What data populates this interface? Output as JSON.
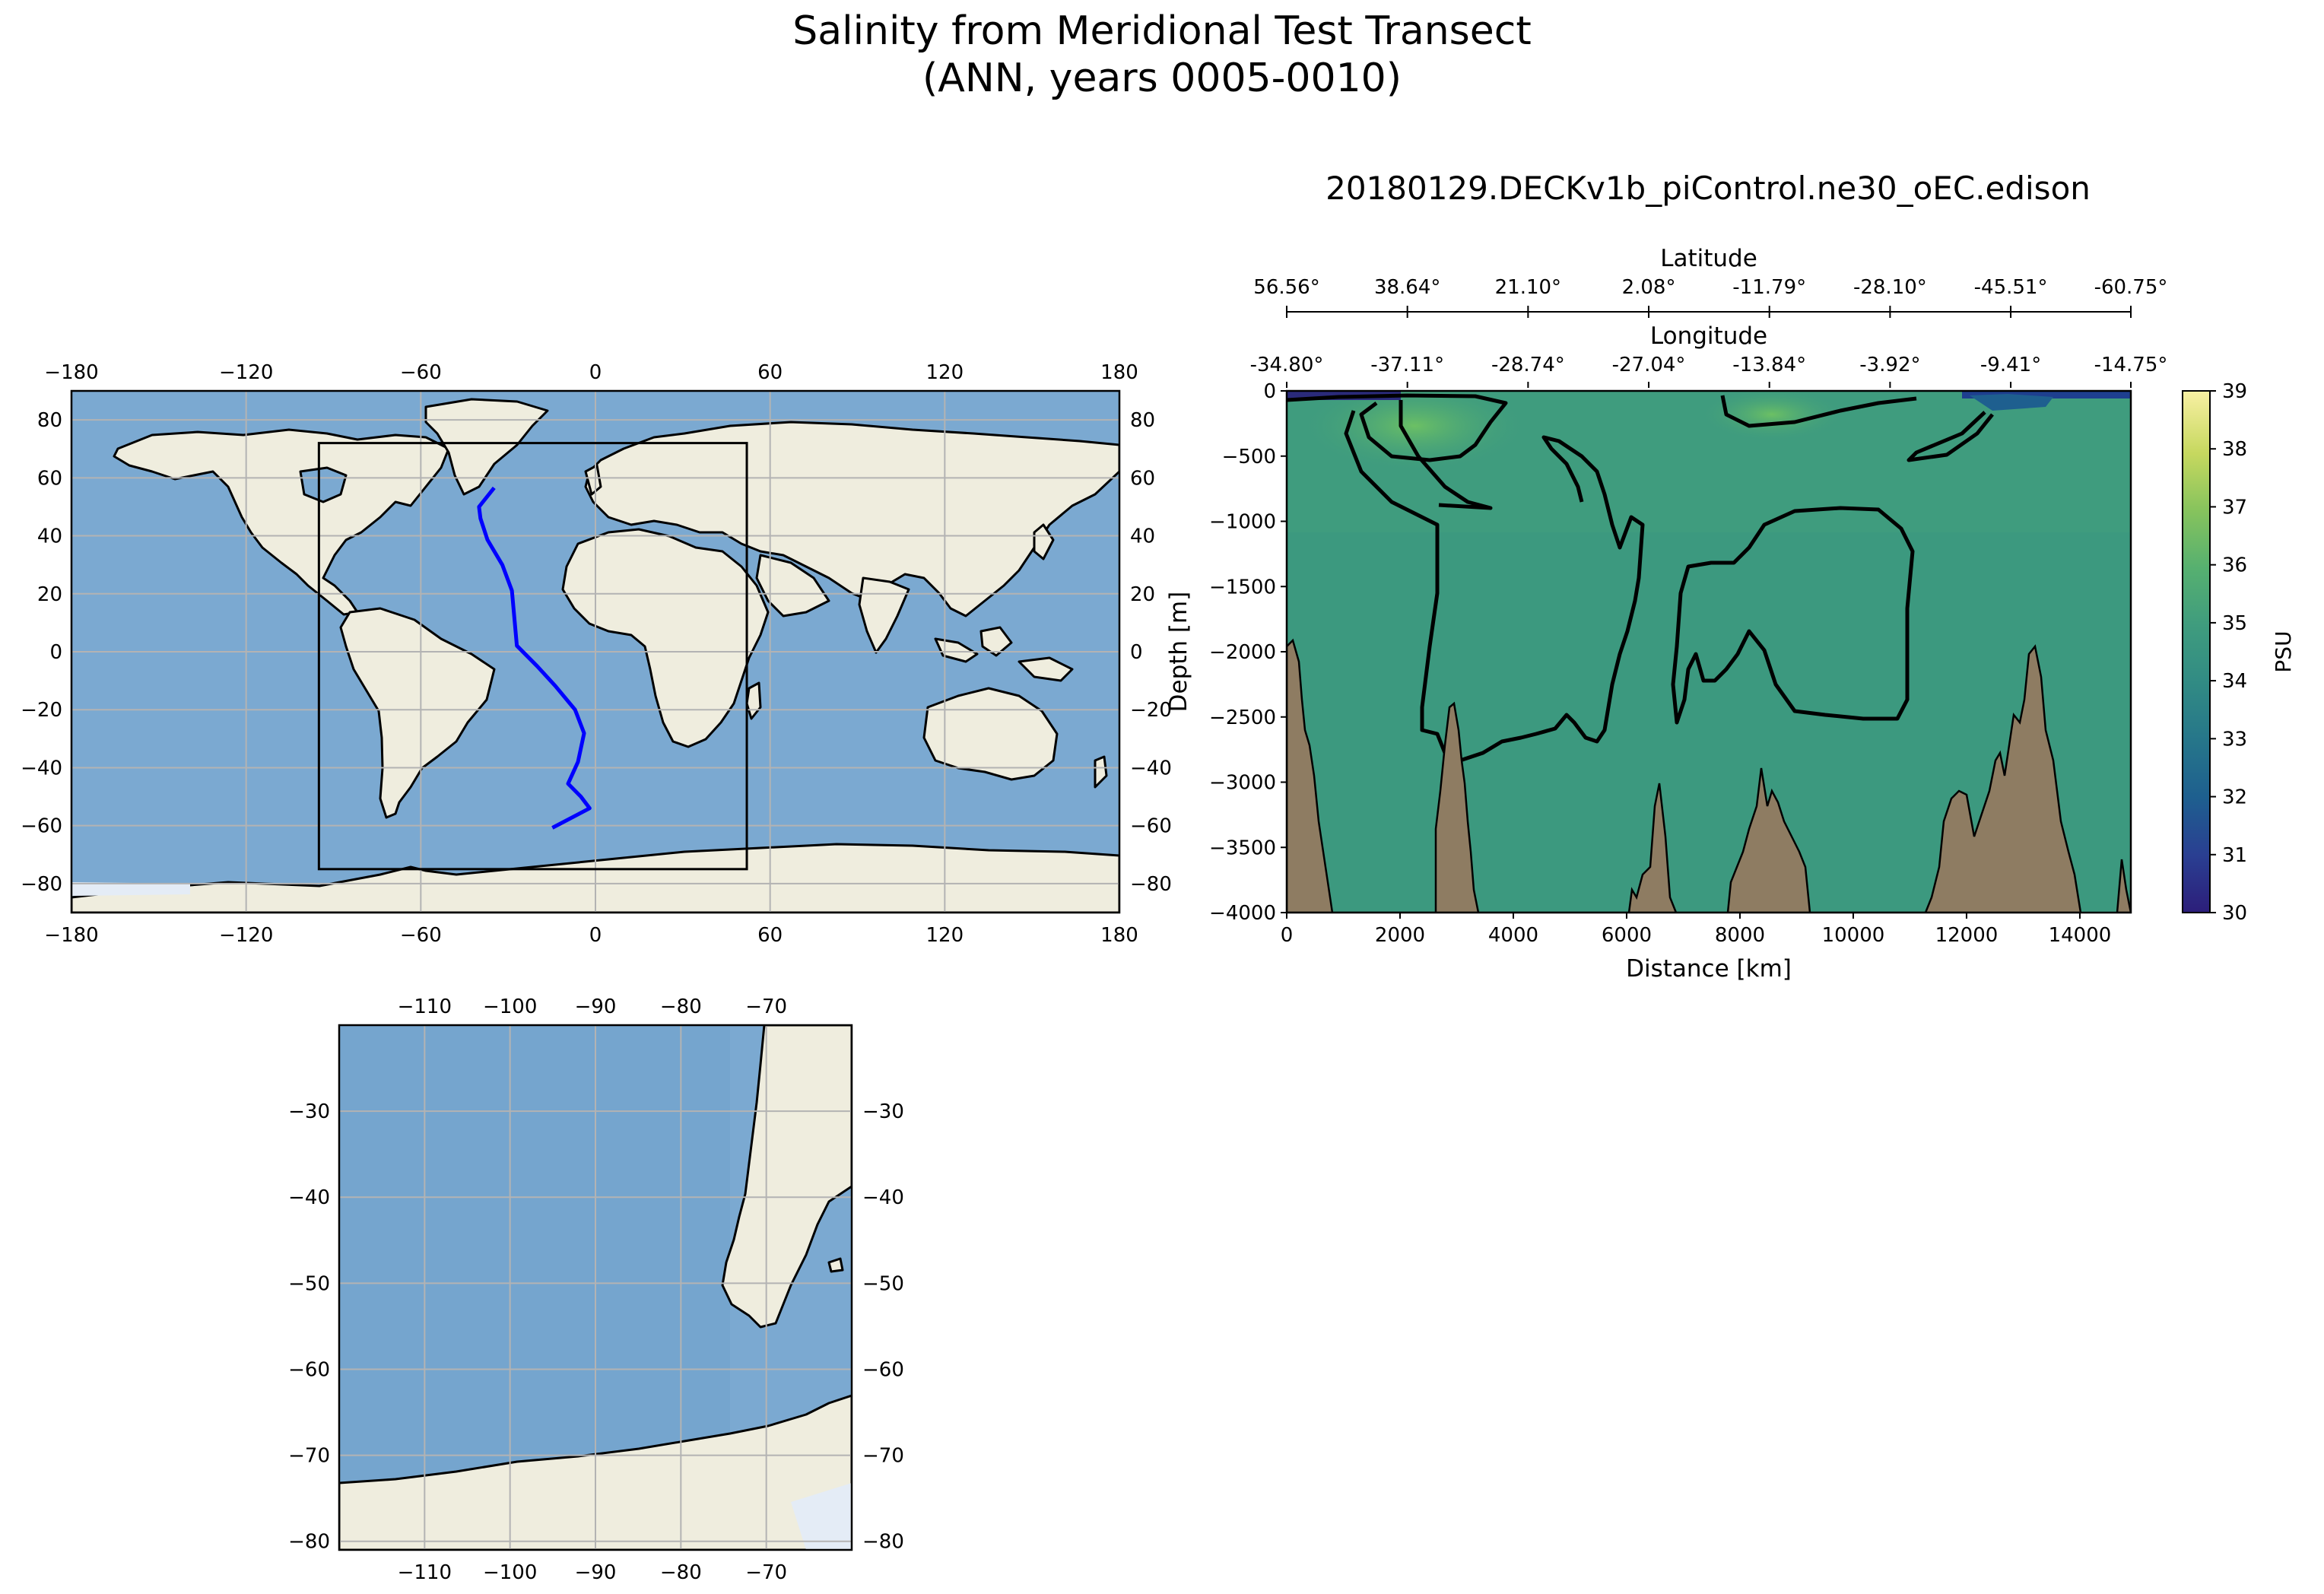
{
  "figure": {
    "title_line1": "Salinity from Meridional Test Transect",
    "title_line2": "(ANN, years 0005-0010)"
  },
  "colors": {
    "ocean": "#7ba9d1",
    "land": "#efedde",
    "ice": "#e4ecf6",
    "grid": "#b3b3b3",
    "transect": "#0000ff",
    "bathymetry": "#8e7c62",
    "section_fill": "#3f9c7e"
  },
  "chart_data": [
    {
      "id": "global-map",
      "type": "map",
      "projection": "PlateCarree",
      "xlim": [
        -180,
        180
      ],
      "ylim": [
        -90,
        90
      ],
      "xticks": [
        -180,
        -120,
        -60,
        0,
        60,
        120,
        180
      ],
      "xtick_labels": [
        "−180",
        "−120",
        "−60",
        "0",
        "60",
        "120",
        "180"
      ],
      "yticks": [
        80,
        60,
        40,
        20,
        0,
        -20,
        -40,
        -60,
        -80
      ],
      "ytick_labels": [
        "80",
        "60",
        "40",
        "20",
        "0",
        "−20",
        "−40",
        "−60",
        "−80"
      ],
      "grid": true,
      "transect": {
        "lon": [
          -34.8,
          -40.0,
          -39.5,
          -37.1,
          -32.0,
          -28.7,
          -27.0,
          -20.0,
          -13.8,
          -7.0,
          -3.9,
          -6.0,
          -9.4,
          -5.0,
          -2.0,
          -14.8
        ],
        "lat": [
          56.56,
          50.0,
          46.0,
          38.64,
          30.0,
          21.1,
          2.08,
          -5.0,
          -11.79,
          -20.0,
          -28.1,
          -38.0,
          -45.51,
          -50.0,
          -54.0,
          -60.75
        ]
      },
      "zoom_box": {
        "lon": [
          -95,
          52
        ],
        "lat": [
          -75,
          72
        ]
      }
    },
    {
      "id": "regional-map",
      "type": "map",
      "projection": "PlateCarree",
      "xlim": [
        -120,
        -60
      ],
      "ylim": [
        -81,
        -20
      ],
      "xticks": [
        -110,
        -100,
        -90,
        -80,
        -70
      ],
      "xtick_labels": [
        "−110",
        "−100",
        "−90",
        "−80",
        "−70"
      ],
      "yticks": [
        -30,
        -40,
        -50,
        -60,
        -70,
        -80
      ],
      "ytick_labels": [
        "−30",
        "−40",
        "−50",
        "−60",
        "−70",
        "−80"
      ],
      "grid": true
    },
    {
      "id": "salinity-section",
      "type": "heatmap",
      "title": "20180129.DECKv1b_piControl.ne30_oEC.edison",
      "xlabel": "Distance [km]",
      "ylabel": "Depth [m]",
      "xlim": [
        0,
        14900
      ],
      "ylim": [
        -4000,
        0
      ],
      "xticks": [
        0,
        2000,
        4000,
        6000,
        8000,
        10000,
        12000,
        14000
      ],
      "xtick_labels": [
        "0",
        "2000",
        "4000",
        "6000",
        "8000",
        "10000",
        "12000",
        "14000"
      ],
      "yticks": [
        0,
        -500,
        -1000,
        -1500,
        -2000,
        -2500,
        -3000,
        -3500,
        -4000
      ],
      "ytick_labels": [
        "0",
        "−500",
        "−1000",
        "−1500",
        "−2000",
        "−2500",
        "−3000",
        "−3500",
        "−4000"
      ],
      "secondary_axes": [
        {
          "label": "Latitude",
          "tick_distances": [
            0,
            2130,
            4260,
            6390,
            8520,
            10650,
            12780,
            14900
          ],
          "tick_labels": [
            "56.56°",
            "38.64°",
            "21.10°",
            "2.08°",
            "-11.79°",
            "-28.10°",
            "-45.51°",
            "-60.75°"
          ]
        },
        {
          "label": "Longitude",
          "tick_distances": [
            0,
            2130,
            4260,
            6390,
            8520,
            10650,
            12780,
            14900
          ],
          "tick_labels": [
            "-34.80°",
            "-37.11°",
            "-28.74°",
            "-27.04°",
            "-13.84°",
            "-3.92°",
            "-9.41°",
            "-14.75°"
          ]
        }
      ],
      "colorbar": {
        "label": "PSU",
        "range": [
          30,
          39
        ],
        "ticks": [
          39,
          38,
          37,
          36,
          35,
          34,
          33,
          32,
          31,
          30
        ],
        "colormap": [
          "#2c1e7a",
          "#2a3f92",
          "#1e5f8f",
          "#26768a",
          "#318b84",
          "#3f9c7e",
          "#56b070",
          "#86c35d",
          "#c6d85f",
          "#f8f0a3"
        ]
      },
      "contour_levels": [
        34.5,
        35.5
      ]
    }
  ]
}
